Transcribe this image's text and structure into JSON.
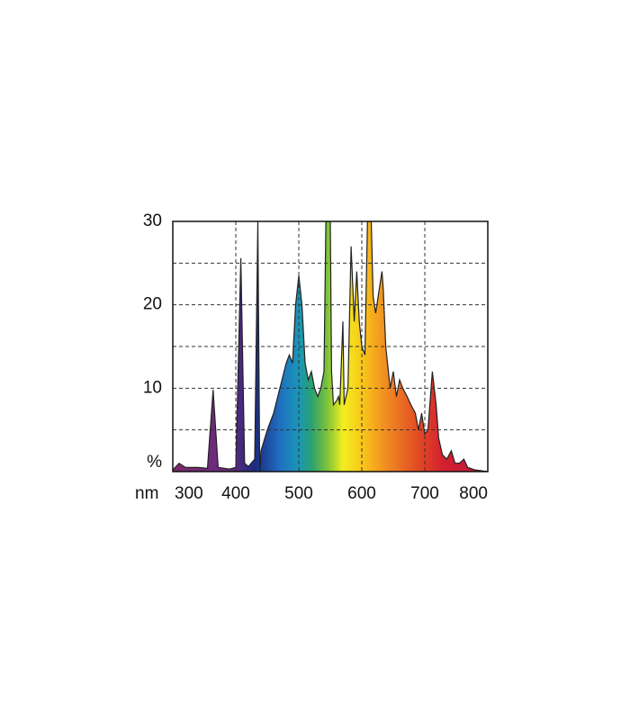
{
  "chart_data": {
    "type": "area",
    "xlabel": "nm",
    "xlim": [
      300,
      800
    ],
    "xticks": [
      300,
      400,
      500,
      600,
      700,
      800
    ],
    "ylim": [
      0,
      30
    ],
    "yticks": [
      {
        "value": 0,
        "label": "%"
      },
      10,
      20,
      30
    ],
    "yminor": [
      5,
      15,
      25
    ],
    "grid": true,
    "line_color": "#222",
    "spectrum_colors": [
      [
        300,
        "#7a2a6e"
      ],
      [
        390,
        "#6a2a80"
      ],
      [
        430,
        "#1a2a80"
      ],
      [
        470,
        "#1f6fc0"
      ],
      [
        500,
        "#1a96b8"
      ],
      [
        520,
        "#2aa070"
      ],
      [
        545,
        "#7cc23a"
      ],
      [
        570,
        "#f2ee20"
      ],
      [
        600,
        "#f8c818"
      ],
      [
        640,
        "#f08a22"
      ],
      [
        690,
        "#e24a24"
      ],
      [
        730,
        "#d41f30"
      ],
      [
        800,
        "#b81a40"
      ]
    ],
    "x": [
      300,
      310,
      320,
      340,
      355,
      364,
      372,
      390,
      400,
      408,
      414,
      420,
      430,
      435,
      438,
      440,
      450,
      460,
      470,
      480,
      485,
      490,
      495,
      500,
      505,
      510,
      515,
      520,
      525,
      530,
      535,
      540,
      543,
      550,
      552,
      555,
      560,
      563,
      565,
      570,
      572,
      578,
      583,
      588,
      592,
      596,
      600,
      605,
      609,
      615,
      618,
      622,
      628,
      632,
      634,
      638,
      645,
      650,
      655,
      660,
      665,
      672,
      678,
      685,
      690,
      695,
      700,
      705,
      712,
      718,
      722,
      728,
      735,
      742,
      748,
      755,
      762,
      768,
      780,
      800
    ],
    "values": [
      0.2,
      1,
      0.5,
      0.5,
      0.4,
      9.8,
      0.5,
      0.3,
      0.5,
      25.6,
      1,
      0.6,
      1.5,
      30,
      0,
      2.5,
      5,
      7,
      10,
      13,
      14,
      13,
      20,
      23.5,
      20,
      13,
      11,
      12,
      10,
      9,
      10,
      12,
      30,
      30,
      12,
      8,
      8.5,
      9,
      8,
      18,
      8,
      10,
      27,
      18,
      24,
      18,
      15,
      14,
      30,
      30,
      21,
      19,
      22,
      24,
      22,
      15,
      10,
      12,
      9,
      11,
      10,
      9,
      8,
      7,
      5,
      7,
      4.5,
      5,
      12,
      8,
      4,
      2,
      1.5,
      2.5,
      1,
      1,
      1.5,
      0.5,
      0.2,
      0
    ]
  }
}
